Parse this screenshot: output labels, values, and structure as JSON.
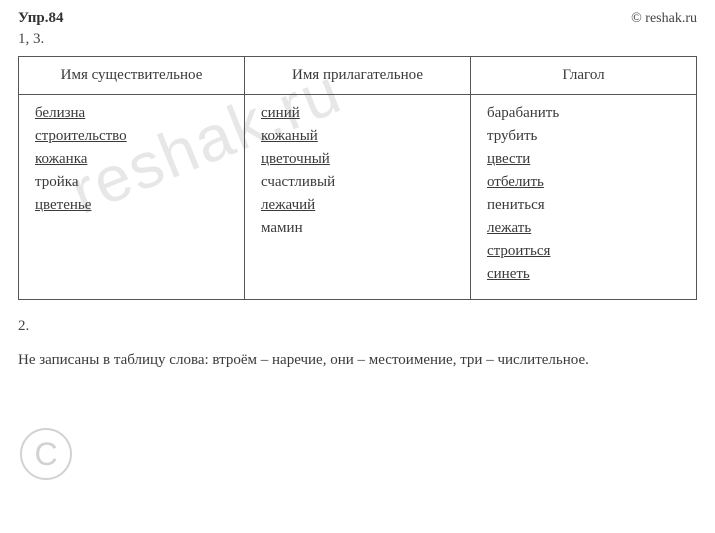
{
  "header": {
    "title": "Упр.84",
    "brand": "© reshak.ru"
  },
  "subhead": "1, 3.",
  "table": {
    "headers": [
      "Имя существительное",
      "Имя прилагательное",
      "Глагол"
    ],
    "columns": [
      [
        {
          "text": "белизна",
          "underline": true
        },
        {
          "text": "строительство",
          "underline": true
        },
        {
          "text": "кожанка",
          "underline": true
        },
        {
          "text": "тройка",
          "underline": false
        },
        {
          "text": "цветенье",
          "underline": true
        }
      ],
      [
        {
          "text": "синий",
          "underline": true
        },
        {
          "text": "кожаный",
          "underline": true
        },
        {
          "text": "цветочный",
          "underline": true
        },
        {
          "text": "счастливый",
          "underline": false
        },
        {
          "text": "лежачий",
          "underline": true
        },
        {
          "text": "мамин",
          "underline": false
        }
      ],
      [
        {
          "text": "барабанить",
          "underline": false
        },
        {
          "text": "трубить",
          "underline": false
        },
        {
          "text": "цвести",
          "underline": true
        },
        {
          "text": "отбелить",
          "underline": true
        },
        {
          "text": "пениться",
          "underline": false
        },
        {
          "text": "лежать",
          "underline": true
        },
        {
          "text": "строиться",
          "underline": true
        },
        {
          "text": "синеть",
          "underline": true
        }
      ]
    ]
  },
  "section2": {
    "label": "2.",
    "note": "Не записаны в таблицу слова: втроём – наречие, они – местоимение, три – числительное."
  },
  "watermark": {
    "circle": "C",
    "diagonal": "reshak.ru"
  },
  "style": {
    "text_color": "#3a3a3a",
    "border_color": "#555555",
    "watermark_color": "#e7e7e7",
    "background": "#ffffff"
  }
}
